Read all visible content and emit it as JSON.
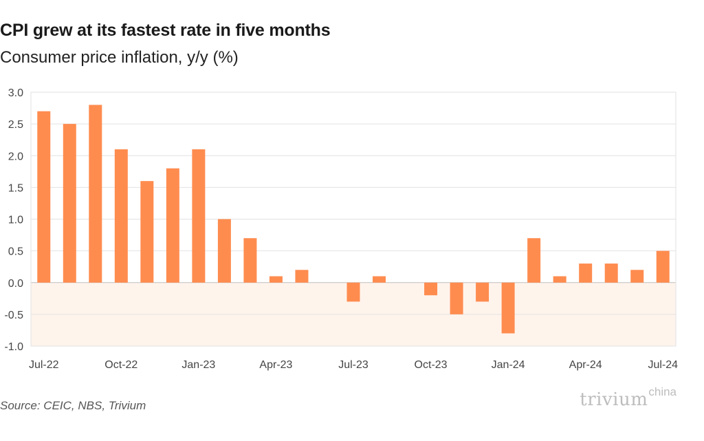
{
  "title": "CPI grew at its fastest rate in five months",
  "subtitle": "Consumer price inflation, y/y (%)",
  "source": "Source: CEIC, NBS, Trivium",
  "logo": {
    "main": "trivium",
    "sup": "china"
  },
  "colors": {
    "bar": "#ff8c4f",
    "negative_band": "#fff4ec",
    "grid": "#e2e2e2",
    "zero_line": "#bfbfbf"
  },
  "chart_data": {
    "type": "bar",
    "categories": [
      "Jul-22",
      "Aug-22",
      "Sep-22",
      "Oct-22",
      "Nov-22",
      "Dec-22",
      "Jan-23",
      "Feb-23",
      "Mar-23",
      "Apr-23",
      "May-23",
      "Jun-23",
      "Jul-23",
      "Aug-23",
      "Sep-23",
      "Oct-23",
      "Nov-23",
      "Dec-23",
      "Jan-24",
      "Feb-24",
      "Mar-24",
      "Apr-24",
      "May-24",
      "Jun-24",
      "Jul-24"
    ],
    "values": [
      2.7,
      2.5,
      2.8,
      2.1,
      1.6,
      1.8,
      2.1,
      1.0,
      0.7,
      0.1,
      0.2,
      0.0,
      -0.3,
      0.1,
      0.0,
      -0.2,
      -0.5,
      -0.3,
      -0.8,
      0.7,
      0.1,
      0.3,
      0.3,
      0.2,
      0.5
    ],
    "x_tick_labels": [
      "Jul-22",
      "Oct-22",
      "Jan-23",
      "Apr-23",
      "Jul-23",
      "Oct-23",
      "Jan-24",
      "Apr-24",
      "Jul-24"
    ],
    "y_tick_labels": [
      "3.0",
      "2.5",
      "2.0",
      "1.5",
      "1.0",
      "0.5",
      "0.0",
      "-0.5",
      "-1.0"
    ],
    "ylim": [
      -1.0,
      3.0
    ],
    "grid": true,
    "legend": "none"
  }
}
